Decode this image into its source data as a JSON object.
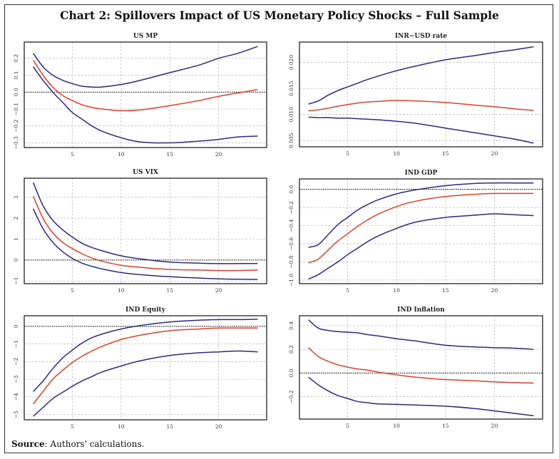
{
  "title": "Chart 2: Spillovers Impact of US Monetary Policy Shocks – Full Sample",
  "source_label": "Source",
  "source_text": ": Authors' calculations.",
  "colors": {
    "band": "#2b2a7f",
    "response": "#e0402a",
    "grid": "#bbbbbb",
    "zero_line": "#000000"
  },
  "chart_data": [
    {
      "type": "line",
      "title": "US MP",
      "x": [
        1,
        2,
        3,
        4,
        5,
        6,
        7,
        8,
        10,
        12,
        15,
        18,
        20,
        22,
        24
      ],
      "xlim": [
        0.08,
        24.92
      ],
      "ylim": [
        -0.328,
        0.296
      ],
      "xticks": [
        "5",
        "10",
        "15",
        "20"
      ],
      "xtick_values": [
        5,
        10,
        15,
        20
      ],
      "yticks": [
        "−0.3",
        "−0.2",
        "−0.1",
        "0.0",
        "0.1",
        "0.2"
      ],
      "ytick_values": [
        -0.3,
        -0.2,
        -0.1,
        0,
        0.1,
        0.2
      ],
      "grid": true,
      "zero_line": true,
      "series": [
        {
          "role": "upper",
          "values": [
            0.23,
            0.15,
            0.1,
            0.07,
            0.05,
            0.035,
            0.03,
            0.03,
            0.045,
            0.07,
            0.115,
            0.16,
            0.2,
            0.23,
            0.27
          ]
        },
        {
          "role": "response",
          "values": [
            0.19,
            0.1,
            0.03,
            -0.02,
            -0.05,
            -0.075,
            -0.09,
            -0.1,
            -0.11,
            -0.105,
            -0.08,
            -0.05,
            -0.025,
            -0.005,
            0.015
          ]
        },
        {
          "role": "lower",
          "values": [
            0.15,
            0.07,
            0.0,
            -0.06,
            -0.12,
            -0.16,
            -0.2,
            -0.23,
            -0.27,
            -0.295,
            -0.3,
            -0.29,
            -0.28,
            -0.265,
            -0.26
          ]
        }
      ]
    },
    {
      "type": "line",
      "title": "INR−USD rate",
      "x": [
        1,
        2,
        3,
        4,
        5,
        6,
        7,
        8,
        10,
        12,
        15,
        18,
        20,
        22,
        24
      ],
      "xlim": [
        0.08,
        24.92
      ],
      "ylim": [
        0.0038,
        0.0239
      ],
      "xticks": [
        "5",
        "10",
        "15",
        "20"
      ],
      "xtick_values": [
        5,
        10,
        15,
        20
      ],
      "yticks": [
        "0.005",
        "0.010",
        "0.015",
        "0.020"
      ],
      "ytick_values": [
        0.005,
        0.01,
        0.015,
        0.02
      ],
      "grid": true,
      "zero_line": false,
      "series": [
        {
          "role": "upper",
          "values": [
            0.012,
            0.0126,
            0.0137,
            0.0146,
            0.0153,
            0.016,
            0.0167,
            0.0173,
            0.0184,
            0.0193,
            0.0205,
            0.0213,
            0.0219,
            0.0224,
            0.023
          ]
        },
        {
          "role": "response",
          "values": [
            0.0107,
            0.0109,
            0.0112,
            0.0116,
            0.0119,
            0.0122,
            0.0124,
            0.0125,
            0.0127,
            0.0126,
            0.0123,
            0.0118,
            0.0115,
            0.0111,
            0.0108
          ]
        },
        {
          "role": "lower",
          "values": [
            0.0095,
            0.0094,
            0.0094,
            0.0093,
            0.0093,
            0.0092,
            0.0091,
            0.009,
            0.0087,
            0.0083,
            0.0074,
            0.0065,
            0.0059,
            0.0053,
            0.0045
          ]
        }
      ]
    },
    {
      "type": "line",
      "title": "US VIX",
      "x": [
        1,
        2,
        3,
        4,
        5,
        6,
        7,
        8,
        10,
        12,
        15,
        18,
        20,
        22,
        24
      ],
      "xlim": [
        0.08,
        24.92
      ],
      "ylim": [
        -1.13,
        3.91
      ],
      "xticks": [
        "5",
        "10",
        "15",
        "20"
      ],
      "xtick_values": [
        5,
        10,
        15,
        20
      ],
      "yticks": [
        "−1",
        "0",
        "1",
        "2",
        "3"
      ],
      "ytick_values": [
        -1,
        0,
        1,
        2,
        3
      ],
      "grid": true,
      "zero_line": true,
      "series": [
        {
          "role": "upper",
          "values": [
            3.7,
            2.6,
            1.9,
            1.45,
            1.1,
            0.8,
            0.6,
            0.45,
            0.2,
            0.05,
            -0.1,
            -0.15,
            -0.17,
            -0.17,
            -0.17
          ]
        },
        {
          "role": "response",
          "values": [
            3.05,
            2.0,
            1.3,
            0.85,
            0.55,
            0.3,
            0.1,
            -0.05,
            -0.25,
            -0.35,
            -0.45,
            -0.48,
            -0.5,
            -0.5,
            -0.48
          ]
        },
        {
          "role": "lower",
          "values": [
            2.45,
            1.5,
            0.85,
            0.4,
            0.08,
            -0.15,
            -0.3,
            -0.42,
            -0.6,
            -0.7,
            -0.8,
            -0.86,
            -0.9,
            -0.92,
            -0.93
          ]
        }
      ]
    },
    {
      "type": "line",
      "title": "IND GDP",
      "x": [
        1,
        2,
        3,
        4,
        5,
        6,
        7,
        8,
        10,
        12,
        15,
        18,
        20,
        22,
        24
      ],
      "xlim": [
        0.08,
        24.92
      ],
      "ylim": [
        -1.04,
        0.115
      ],
      "xticks": [
        "5",
        "10",
        "15",
        "20"
      ],
      "xtick_values": [
        5,
        10,
        15,
        20
      ],
      "yticks": [
        "−1.0",
        "−0.8",
        "−0.6",
        "−0.4",
        "−0.2",
        "0.0"
      ],
      "ytick_values": [
        -1.0,
        -0.8,
        -0.6,
        -0.4,
        -0.2,
        0
      ],
      "grid": true,
      "zero_line": true,
      "series": [
        {
          "role": "upper",
          "values": [
            -0.64,
            -0.61,
            -0.5,
            -0.39,
            -0.31,
            -0.23,
            -0.17,
            -0.12,
            -0.05,
            -0.005,
            0.04,
            0.065,
            0.07,
            0.07,
            0.07
          ]
        },
        {
          "role": "response",
          "values": [
            -0.81,
            -0.77,
            -0.67,
            -0.57,
            -0.49,
            -0.41,
            -0.34,
            -0.28,
            -0.19,
            -0.13,
            -0.08,
            -0.055,
            -0.045,
            -0.045,
            -0.045
          ]
        },
        {
          "role": "lower",
          "values": [
            -0.99,
            -0.94,
            -0.87,
            -0.8,
            -0.72,
            -0.65,
            -0.58,
            -0.52,
            -0.43,
            -0.36,
            -0.31,
            -0.285,
            -0.27,
            -0.28,
            -0.29
          ]
        }
      ]
    },
    {
      "type": "line",
      "title": "IND Equity",
      "x": [
        1,
        2,
        3,
        4,
        5,
        6,
        7,
        8,
        10,
        12,
        15,
        18,
        20,
        22,
        24
      ],
      "xlim": [
        0.08,
        24.92
      ],
      "ylim": [
        -5.3,
        0.6
      ],
      "xticks": [
        "5",
        "10",
        "15",
        "20"
      ],
      "xtick_values": [
        5,
        10,
        15,
        20
      ],
      "yticks": [
        "−5",
        "−4",
        "−3",
        "−2",
        "−1",
        "0"
      ],
      "ytick_values": [
        -5,
        -4,
        -3,
        -2,
        -1,
        0
      ],
      "grid": true,
      "zero_line": true,
      "series": [
        {
          "role": "upper",
          "values": [
            -3.7,
            -3.1,
            -2.4,
            -1.8,
            -1.35,
            -0.95,
            -0.65,
            -0.45,
            -0.15,
            0.05,
            0.25,
            0.35,
            0.38,
            0.38,
            0.4
          ]
        },
        {
          "role": "response",
          "values": [
            -4.4,
            -3.7,
            -3.0,
            -2.5,
            -2.05,
            -1.7,
            -1.4,
            -1.15,
            -0.75,
            -0.5,
            -0.25,
            -0.15,
            -0.1,
            -0.1,
            -0.1
          ]
        },
        {
          "role": "lower",
          "values": [
            -5.1,
            -4.6,
            -4.1,
            -3.75,
            -3.4,
            -3.1,
            -2.85,
            -2.6,
            -2.25,
            -1.95,
            -1.65,
            -1.5,
            -1.45,
            -1.4,
            -1.45
          ]
        }
      ]
    },
    {
      "type": "line",
      "title": "IND Inflation",
      "x": [
        1,
        2,
        3,
        4,
        5,
        6,
        7,
        8,
        10,
        12,
        15,
        18,
        20,
        22,
        24
      ],
      "xlim": [
        0.08,
        24.92
      ],
      "ylim": [
        -0.389,
        0.484
      ],
      "xticks": [
        "5",
        "10",
        "15",
        "20"
      ],
      "xtick_values": [
        5,
        10,
        15,
        20
      ],
      "yticks": [
        "−0.2",
        "0.0",
        "0.2",
        "0.4"
      ],
      "ytick_values": [
        -0.2,
        0,
        0.2,
        0.4
      ],
      "grid": true,
      "zero_line": true,
      "series": [
        {
          "role": "upper",
          "values": [
            0.45,
            0.38,
            0.36,
            0.35,
            0.345,
            0.34,
            0.325,
            0.315,
            0.29,
            0.27,
            0.235,
            0.22,
            0.215,
            0.21,
            0.2
          ]
        },
        {
          "role": "response",
          "values": [
            0.215,
            0.14,
            0.1,
            0.07,
            0.05,
            0.035,
            0.025,
            0.01,
            -0.015,
            -0.035,
            -0.055,
            -0.065,
            -0.075,
            -0.08,
            -0.085
          ]
        },
        {
          "role": "lower",
          "values": [
            -0.035,
            -0.1,
            -0.15,
            -0.19,
            -0.215,
            -0.24,
            -0.25,
            -0.26,
            -0.265,
            -0.27,
            -0.28,
            -0.3,
            -0.32,
            -0.34,
            -0.36
          ]
        }
      ]
    }
  ]
}
